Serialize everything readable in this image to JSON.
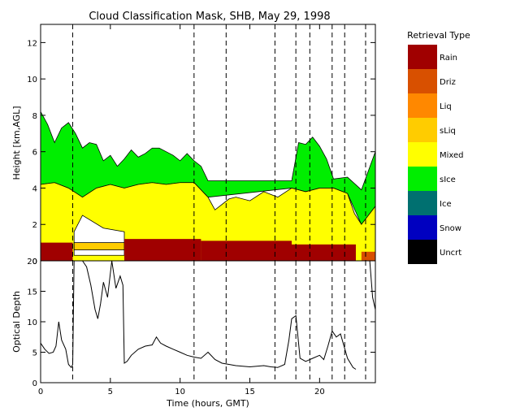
{
  "chart_data": [
    {
      "type": "heatmap",
      "title": "Cloud Classification Mask, SHB, May 29, 1998",
      "xlabel": "",
      "ylabel": "Height [km,AGL]",
      "xlim": [
        0,
        24
      ],
      "ylim": [
        0,
        13
      ],
      "yticks": [
        0,
        2,
        4,
        6,
        8,
        10,
        12
      ],
      "legend": {
        "title": "Retrieval Type",
        "placement": "right",
        "entries": [
          {
            "label": "Rain",
            "color": "#a00000"
          },
          {
            "label": "Driz",
            "color": "#d85000"
          },
          {
            "label": "Liq",
            "color": "#ff8800"
          },
          {
            "label": "sLiq",
            "color": "#ffcc00"
          },
          {
            "label": "Mixed",
            "color": "#ffff00"
          },
          {
            "label": "sIce",
            "color": "#00ee00"
          },
          {
            "label": "Ice",
            "color": "#007070"
          },
          {
            "label": "Snow",
            "color": "#0000c0"
          },
          {
            "label": "Uncrt",
            "color": "#000000"
          }
        ]
      },
      "layers": {
        "rain": [
          {
            "x0": 0.0,
            "x1": 2.3,
            "top": 1.0
          },
          {
            "x0": 6.0,
            "x1": 11.5,
            "top": 1.2
          },
          {
            "x0": 11.5,
            "x1": 18.0,
            "top": 1.1
          },
          {
            "x0": 18.0,
            "x1": 22.6,
            "top": 0.9
          }
        ],
        "mixed_top": [
          [
            0.0,
            4.2
          ],
          [
            1.0,
            4.3
          ],
          [
            2.0,
            4.0
          ],
          [
            3.0,
            3.5
          ],
          [
            4.0,
            4.0
          ],
          [
            5.0,
            4.2
          ],
          [
            6.0,
            4.0
          ],
          [
            7.0,
            4.2
          ],
          [
            8.0,
            4.3
          ],
          [
            9.0,
            4.2
          ],
          [
            10.0,
            4.3
          ],
          [
            11.0,
            4.3
          ],
          [
            12.0,
            3.5
          ],
          [
            12.5,
            2.8
          ],
          [
            13.5,
            3.4
          ],
          [
            14.0,
            3.5
          ],
          [
            15.0,
            3.3
          ],
          [
            16.0,
            3.8
          ],
          [
            17.0,
            3.5
          ],
          [
            18.0,
            4.0
          ],
          [
            19.0,
            3.8
          ],
          [
            20.0,
            4.0
          ],
          [
            21.0,
            4.0
          ],
          [
            22.0,
            3.7
          ],
          [
            22.5,
            2.6
          ],
          [
            23.0,
            2.0
          ],
          [
            24.0,
            3.0
          ]
        ],
        "ice_top": [
          [
            0.0,
            8.2
          ],
          [
            0.5,
            7.5
          ],
          [
            1.0,
            6.5
          ],
          [
            1.5,
            7.3
          ],
          [
            2.0,
            7.6
          ],
          [
            2.5,
            7.0
          ],
          [
            3.0,
            6.2
          ],
          [
            3.5,
            6.5
          ],
          [
            4.0,
            6.4
          ],
          [
            4.5,
            5.5
          ],
          [
            5.0,
            5.8
          ],
          [
            5.5,
            5.2
          ],
          [
            6.0,
            5.6
          ],
          [
            6.5,
            6.1
          ],
          [
            7.0,
            5.7
          ],
          [
            7.5,
            5.9
          ],
          [
            8.0,
            6.2
          ],
          [
            8.5,
            6.2
          ],
          [
            9.0,
            6.0
          ],
          [
            9.5,
            5.8
          ],
          [
            10.0,
            5.5
          ],
          [
            10.5,
            5.9
          ],
          [
            11.0,
            5.5
          ],
          [
            11.5,
            5.2
          ],
          [
            12.0,
            4.4
          ],
          [
            18.0,
            4.4
          ],
          [
            18.5,
            6.5
          ],
          [
            19.0,
            6.4
          ],
          [
            19.5,
            6.8
          ],
          [
            20.0,
            6.3
          ],
          [
            20.5,
            5.6
          ],
          [
            21.0,
            4.5
          ],
          [
            22.0,
            4.6
          ],
          [
            23.0,
            3.9
          ],
          [
            24.0,
            6.0
          ]
        ],
        "ice_gap": [
          [
            12.0,
            18.0
          ]
        ]
      }
    },
    {
      "type": "line",
      "title": "",
      "xlabel": "Time (hours, GMT)",
      "ylabel": "Optical Depth",
      "xlim": [
        0,
        24
      ],
      "ylim": [
        0,
        20
      ],
      "xticks": [
        0,
        5,
        10,
        15,
        20
      ],
      "yticks": [
        0,
        5,
        10,
        15,
        20
      ],
      "series": [
        {
          "x": [
            0.0,
            0.3,
            0.6,
            0.9,
            1.1,
            1.3,
            1.5,
            1.8,
            2.0,
            2.2,
            2.3,
            2.4,
            2.5,
            3.0,
            3.3,
            3.6,
            3.9,
            4.1,
            4.3,
            4.5,
            4.8,
            5.1,
            5.4,
            5.7,
            5.9,
            6.0,
            6.2,
            6.5,
            7.0,
            7.5,
            8.0,
            8.3,
            8.6,
            9.0,
            9.5,
            10.0,
            10.5,
            11.0,
            11.5,
            12.0,
            12.5,
            13.0,
            13.5,
            14.0,
            14.5,
            15.0,
            15.5,
            16.0,
            16.5,
            17.0,
            17.5,
            17.8,
            18.0,
            18.3,
            18.6,
            19.0,
            19.5,
            20.0,
            20.3,
            20.6,
            20.9,
            21.2,
            21.5,
            22.0,
            22.4,
            22.6,
            23.3,
            23.6,
            23.8,
            24.0
          ],
          "y": [
            6.5,
            5.5,
            4.8,
            5.0,
            6.0,
            10.0,
            7.0,
            5.5,
            3.0,
            2.5,
            3.0,
            20.0,
            20.0,
            20.0,
            19.0,
            16.0,
            12.0,
            10.5,
            13.0,
            16.5,
            14.0,
            20.0,
            15.5,
            17.5,
            16.0,
            3.2,
            3.5,
            4.5,
            5.5,
            6.0,
            6.2,
            7.5,
            6.5,
            6.0,
            5.5,
            5.0,
            4.5,
            4.2,
            4.0,
            5.0,
            3.8,
            3.2,
            3.0,
            2.8,
            2.7,
            2.6,
            2.7,
            2.8,
            2.6,
            2.5,
            3.0,
            7.0,
            10.5,
            11.0,
            4.0,
            3.5,
            4.0,
            4.5,
            3.8,
            6.0,
            8.5,
            7.5,
            8.0,
            4.0,
            2.5,
            2.2,
            null,
            20.0,
            14.0,
            12.0
          ]
        }
      ],
      "markers": {
        "dashed_lines": [
          2.3,
          11.0,
          13.3,
          16.8,
          18.3,
          19.3,
          20.9,
          21.8,
          23.3
        ]
      }
    }
  ]
}
